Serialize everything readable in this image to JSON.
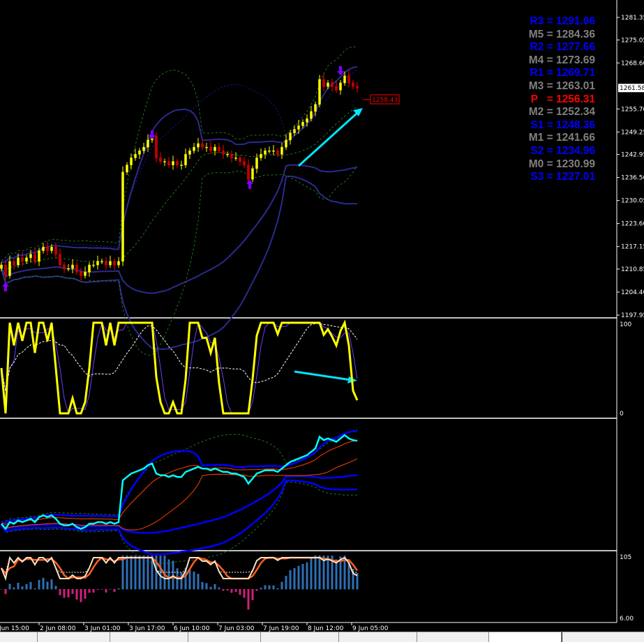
{
  "chart_data": {
    "type": "candlestick",
    "symbol_axis": {
      "price_ticks": [
        "1281.35",
        "1275.05",
        "1268.60",
        "1255.70",
        "1249.25",
        "1242.95",
        "1236.50",
        "1230.05",
        "1223.60",
        "1217.15",
        "1210.85",
        "1204.40",
        "1197.95"
      ],
      "current_price": "1261.58",
      "ylim": [
        1197.95,
        1281.35
      ]
    },
    "time_ticks": [
      "Jun 15:00",
      "2 Jun 08:00",
      "3 Jun 01:00",
      "3 Jun 17:00",
      "6 Jun 10:00",
      "7 Jun 03:00",
      "7 Jun 19:00",
      "8 Jun 12:00",
      "9 Jun 05:00"
    ],
    "closes": [
      1212,
      1209,
      1213,
      1212,
      1214,
      1213,
      1214,
      1215,
      1213,
      1216,
      1217,
      1216,
      1217,
      1215,
      1212,
      1211,
      1211,
      1212,
      1210,
      1209,
      1210,
      1212,
      1212,
      1213,
      1213,
      1212,
      1213,
      1212,
      1213,
      1238,
      1240,
      1242,
      1243,
      1244,
      1245,
      1247,
      1248,
      1242,
      1241,
      1241,
      1240,
      1241,
      1240,
      1240,
      1243,
      1244,
      1245,
      1246,
      1245,
      1245,
      1244,
      1245,
      1244,
      1243,
      1243,
      1242,
      1242,
      1241,
      1240,
      1236,
      1239,
      1242,
      1243,
      1244,
      1244,
      1244,
      1243,
      1245,
      1247,
      1249,
      1250,
      1251,
      1252,
      1253,
      1255,
      1257,
      1264,
      1262,
      1263,
      1262,
      1261,
      1263,
      1265,
      1263,
      1262,
      1261.58
    ],
    "price_label": "1258.43",
    "pivots": [
      {
        "text": "R3 = 1291.06",
        "color": "#0000ff"
      },
      {
        "text": "M5 = 1284.36",
        "color": "#808080"
      },
      {
        "text": "R2 = 1277.66",
        "color": "#0000ff"
      },
      {
        "text": "M4 = 1273.69",
        "color": "#808080"
      },
      {
        "text": "R1 = 1269.71",
        "color": "#0000ff"
      },
      {
        "text": "M3 = 1263.01",
        "color": "#808080"
      },
      {
        "text": "P   = 1256.31",
        "color": "#ff0000"
      },
      {
        "text": "M2 = 1252.34",
        "color": "#808080"
      },
      {
        "text": "S1 = 1248.36",
        "color": "#0000ff"
      },
      {
        "text": "M1 = 1241.66",
        "color": "#808080"
      },
      {
        "text": "S2 = 1234.96",
        "color": "#0000ff"
      },
      {
        "text": "M0 = 1230.99",
        "color": "#808080"
      },
      {
        "text": "S3 = 1227.01",
        "color": "#0000ff"
      }
    ],
    "oscillator_ticks": [
      "100",
      "0"
    ],
    "histogram_ticks": [
      "105",
      "6.00"
    ],
    "colors": {
      "bull": "#ffff00",
      "bear": "#ff0000",
      "band": "#1a1a8c",
      "osc": "#ffff00",
      "price_line": "#00ffff",
      "arrow": "#00e5ff",
      "signal": "#8000ff"
    }
  }
}
